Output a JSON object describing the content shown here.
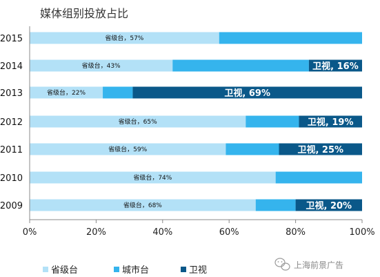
{
  "chart_data": {
    "type": "bar",
    "orientation": "horizontal",
    "stacked": "percent",
    "title": "媒体组别投放占比",
    "categories": [
      "2015",
      "2014",
      "2013",
      "2012",
      "2011",
      "2010",
      "2009"
    ],
    "series": [
      {
        "name": "省级台",
        "color": "#b3e1f7",
        "values": [
          57,
          43,
          22,
          65,
          59,
          74,
          68
        ],
        "labels": [
          "省级台，57%",
          "省级台，43%",
          "省级台，22%",
          "省级台，65%",
          "省级台，59%",
          "省级台，74%",
          "省级台，68%"
        ]
      },
      {
        "name": "城市台",
        "color": "#35b4ed",
        "values": [
          43,
          41,
          9,
          16,
          16,
          26,
          12
        ],
        "labels": [
          "",
          "",
          "",
          "",
          "",
          "",
          ""
        ]
      },
      {
        "name": "卫视",
        "color": "#0a5889",
        "values": [
          0,
          16,
          69,
          19,
          25,
          0,
          20
        ],
        "labels": [
          "",
          "卫视, 16%",
          "卫视, 69%",
          "卫视, 19%",
          "卫视, 25%",
          "",
          "卫视, 20%"
        ]
      }
    ],
    "xlim": [
      0,
      100
    ],
    "xticks": [
      "0%",
      "20%",
      "40%",
      "60%",
      "80%",
      "100%"
    ],
    "grid": false,
    "legend_position": "bottom-left"
  },
  "watermark": {
    "text": "上海前景广告",
    "icon": "wechat-icon"
  }
}
